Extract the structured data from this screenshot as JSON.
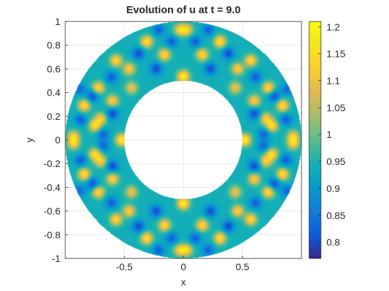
{
  "chart_data": {
    "type": "heatmap",
    "title": "Evolution of u at t = 9.0",
    "xlabel": "x",
    "ylabel": "y",
    "xlim": [
      -1,
      1
    ],
    "ylim": [
      -1,
      1
    ],
    "xticks": [
      -0.5,
      0,
      0.5
    ],
    "xtick_labels": [
      "-0.5",
      "0",
      "0.5"
    ],
    "yticks": [
      -1,
      -0.8,
      -0.6,
      -0.4,
      -0.2,
      0,
      0.2,
      0.4,
      0.6,
      0.8,
      1
    ],
    "ytick_labels": [
      "-1",
      "-0.8",
      "-0.6",
      "-0.4",
      "-0.2",
      "0",
      "0.2",
      "0.4",
      "0.6",
      "0.8",
      "1"
    ],
    "grid": true,
    "domain": {
      "shape": "annulus",
      "inner_radius": 0.5,
      "outer_radius": 1.0
    },
    "colormap": "parula",
    "clim": [
      0.77,
      1.21
    ],
    "colorbar_ticks": [
      0.8,
      0.85,
      0.9,
      0.95,
      1,
      1.05,
      1.1,
      1.15,
      1.2
    ],
    "colorbar_tick_labels": [
      "0.8",
      "0.85",
      "0.9",
      "0.95",
      "1",
      "1.05",
      "1.1",
      "1.15",
      "1.2"
    ],
    "field": {
      "base": 0.94,
      "symmetry": "four-fold (mirror in x and y)",
      "peaks": [
        {
          "x": 0.0,
          "y": 0.535,
          "value": 1.2
        },
        {
          "x": 0.52,
          "y": 0.0,
          "value": 1.2
        },
        {
          "x": 0.16,
          "y": 0.72,
          "value": 1.15
        },
        {
          "x": 0.03,
          "y": 0.93,
          "value": 1.12
        },
        {
          "x": 0.31,
          "y": 0.83,
          "value": 1.16
        },
        {
          "x": 0.57,
          "y": 0.67,
          "value": 1.15
        },
        {
          "x": 0.46,
          "y": 0.6,
          "value": 1.13
        },
        {
          "x": 0.44,
          "y": 0.44,
          "value": 1.1
        },
        {
          "x": 0.72,
          "y": 0.44,
          "value": 1.15
        },
        {
          "x": 0.6,
          "y": 0.33,
          "value": 1.13
        },
        {
          "x": 0.84,
          "y": 0.29,
          "value": 1.16
        },
        {
          "x": 0.93,
          "y": 0.03,
          "value": 1.12
        },
        {
          "x": 0.75,
          "y": 0.12,
          "value": 1.15
        },
        {
          "x": 0.7,
          "y": 0.18,
          "value": 1.12
        }
      ],
      "troughs": [
        {
          "x": 0.23,
          "y": 0.6,
          "value": 0.8
        },
        {
          "x": 0.1,
          "y": 0.83,
          "value": 0.82
        },
        {
          "x": 0.38,
          "y": 0.73,
          "value": 0.8
        },
        {
          "x": 0.61,
          "y": 0.53,
          "value": 0.82
        },
        {
          "x": 0.6,
          "y": 0.22,
          "value": 0.8
        },
        {
          "x": 0.77,
          "y": 0.37,
          "value": 0.8
        },
        {
          "x": 0.87,
          "y": 0.17,
          "value": 0.82
        },
        {
          "x": 0.68,
          "y": 0.05,
          "value": 0.83
        },
        {
          "x": 0.21,
          "y": 0.93,
          "value": 0.82
        },
        {
          "x": 0.88,
          "y": 0.43,
          "value": 0.83
        }
      ]
    }
  }
}
